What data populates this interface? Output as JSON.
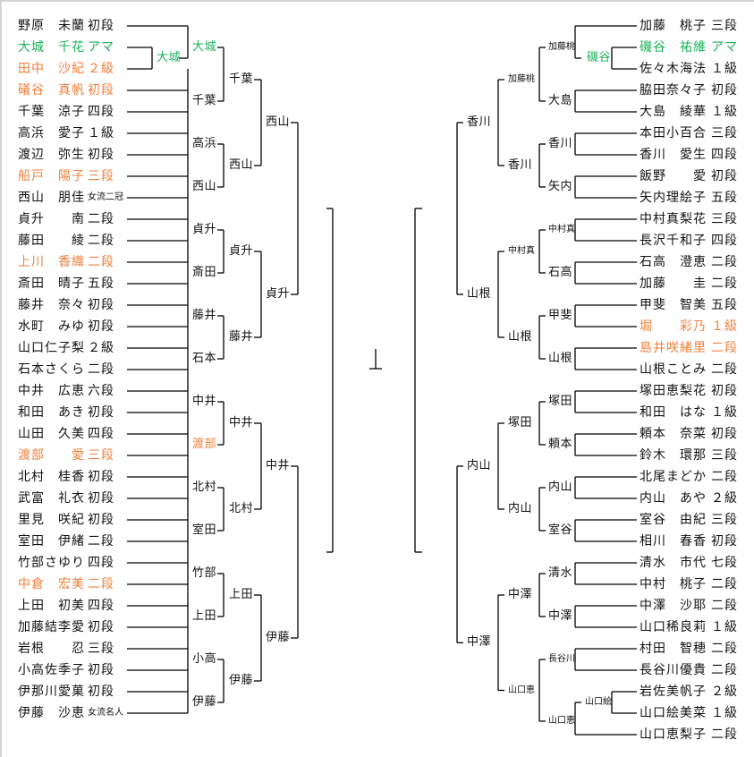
{
  "colors": {
    "default": "#111111",
    "green": "#19b25a",
    "orange": "#f0803c",
    "line": "#000000"
  },
  "left": {
    "players": [
      {
        "name": "野原　未蘭",
        "rank": "初段",
        "color": "#111111"
      },
      {
        "name": "大城　千花",
        "rank": "アマ",
        "color": "#19b25a"
      },
      {
        "name": "田中　沙紀",
        "rank": "２級",
        "color": "#f0803c"
      },
      {
        "name": "礒谷　真帆",
        "rank": "初段",
        "color": "#f0803c"
      },
      {
        "name": "千葉　涼子",
        "rank": "四段",
        "color": "#111111"
      },
      {
        "name": "高浜　愛子",
        "rank": "１級",
        "color": "#111111"
      },
      {
        "name": "渡辺　弥生",
        "rank": "初段",
        "color": "#111111"
      },
      {
        "name": "船戸　陽子",
        "rank": "三段",
        "color": "#f0803c"
      },
      {
        "name": "西山　朋佳",
        "rank": "女流二冠",
        "color": "#111111"
      },
      {
        "name": "貞升　　南",
        "rank": "二段",
        "color": "#111111"
      },
      {
        "name": "藤田　　綾",
        "rank": "二段",
        "color": "#111111"
      },
      {
        "name": "上川　香織",
        "rank": "二段",
        "color": "#f0803c"
      },
      {
        "name": "斎田　晴子",
        "rank": "五段",
        "color": "#111111"
      },
      {
        "name": "藤井　奈々",
        "rank": "初段",
        "color": "#111111"
      },
      {
        "name": "水町　みゆ",
        "rank": "初段",
        "color": "#111111"
      },
      {
        "name": "山口仁子梨",
        "rank": "２級",
        "color": "#111111"
      },
      {
        "name": "石本さくら",
        "rank": "二段",
        "color": "#111111"
      },
      {
        "name": "中井　広恵",
        "rank": "六段",
        "color": "#111111"
      },
      {
        "name": "和田　あき",
        "rank": "初段",
        "color": "#111111"
      },
      {
        "name": "山田　久美",
        "rank": "四段",
        "color": "#111111"
      },
      {
        "name": "渡部　　愛",
        "rank": "三段",
        "color": "#f0803c"
      },
      {
        "name": "北村　桂香",
        "rank": "初段",
        "color": "#111111"
      },
      {
        "name": "武富　礼衣",
        "rank": "初段",
        "color": "#111111"
      },
      {
        "name": "里見　咲紀",
        "rank": "初段",
        "color": "#111111"
      },
      {
        "name": "室田　伊緒",
        "rank": "二段",
        "color": "#111111"
      },
      {
        "name": "竹部さゆり",
        "rank": "四段",
        "color": "#111111"
      },
      {
        "name": "中倉　宏美",
        "rank": "二段",
        "color": "#f0803c"
      },
      {
        "name": "上田　初美",
        "rank": "四段",
        "color": "#111111"
      },
      {
        "name": "加藤結李愛",
        "rank": "初段",
        "color": "#111111"
      },
      {
        "name": "岩根　　忍",
        "rank": "三段",
        "color": "#111111"
      },
      {
        "name": "小高佐季子",
        "rank": "初段",
        "color": "#111111"
      },
      {
        "name": "伊那川愛菓",
        "rank": "初段",
        "color": "#111111"
      },
      {
        "name": "伊藤　沙恵",
        "rank": "女流名人",
        "color": "#111111"
      }
    ],
    "sub": [
      {
        "text": "大城",
        "color": "#19b25a"
      }
    ],
    "r1": [
      {
        "text": "大城",
        "color": "#19b25a"
      },
      {
        "text": "千葉"
      },
      {
        "text": "高浜"
      },
      {
        "text": "西山"
      },
      {
        "text": "貞升"
      },
      {
        "text": "斎田"
      },
      {
        "text": "藤井"
      },
      {
        "text": "石本"
      },
      {
        "text": "中井"
      },
      {
        "text": "渡部",
        "color": "#f0803c"
      },
      {
        "text": "北村"
      },
      {
        "text": "室田"
      },
      {
        "text": "竹部"
      },
      {
        "text": "上田"
      },
      {
        "text": "小高"
      },
      {
        "text": "伊藤"
      }
    ],
    "r2": [
      {
        "text": "千葉"
      },
      {
        "text": "西山"
      },
      {
        "text": "貞升"
      },
      {
        "text": "藤井"
      },
      {
        "text": "中井"
      },
      {
        "text": "北村"
      },
      {
        "text": "上田"
      },
      {
        "text": "伊藤"
      }
    ],
    "r3": [
      {
        "text": "西山"
      },
      {
        "text": "貞升"
      },
      {
        "text": "中井"
      },
      {
        "text": "伊藤"
      }
    ]
  },
  "right": {
    "players": [
      {
        "name": "加藤　桃子",
        "rank": "三段",
        "color": "#111111"
      },
      {
        "name": "磯谷　祐維",
        "rank": "アマ",
        "color": "#19b25a"
      },
      {
        "name": "佐々木海法",
        "rank": "１級",
        "color": "#111111"
      },
      {
        "name": "脇田奈々子",
        "rank": "初段",
        "color": "#111111"
      },
      {
        "name": "大島　綾華",
        "rank": "１級",
        "color": "#111111"
      },
      {
        "name": "本田小百合",
        "rank": "三段",
        "color": "#111111"
      },
      {
        "name": "香川　愛生",
        "rank": "四段",
        "color": "#111111"
      },
      {
        "name": "飯野　　愛",
        "rank": "初段",
        "color": "#111111"
      },
      {
        "name": "矢内理絵子",
        "rank": "五段",
        "color": "#111111"
      },
      {
        "name": "中村真梨花",
        "rank": "三段",
        "color": "#111111"
      },
      {
        "name": "長沢千和子",
        "rank": "四段",
        "color": "#111111"
      },
      {
        "name": "石高　澄恵",
        "rank": "二段",
        "color": "#111111"
      },
      {
        "name": "加藤　　圭",
        "rank": "二段",
        "color": "#111111"
      },
      {
        "name": "甲斐　智美",
        "rank": "五段",
        "color": "#111111"
      },
      {
        "name": "堀　　彩乃",
        "rank": "１級",
        "color": "#f0803c"
      },
      {
        "name": "島井咲緒里",
        "rank": "二段",
        "color": "#f0803c"
      },
      {
        "name": "山根ことみ",
        "rank": "二段",
        "color": "#111111"
      },
      {
        "name": "塚田恵梨花",
        "rank": "初段",
        "color": "#111111"
      },
      {
        "name": "和田　はな",
        "rank": "１級",
        "color": "#111111"
      },
      {
        "name": "頼本　奈菜",
        "rank": "初段",
        "color": "#111111"
      },
      {
        "name": "鈴木　環那",
        "rank": "三段",
        "color": "#111111"
      },
      {
        "name": "北尾まどか",
        "rank": "二段",
        "color": "#111111"
      },
      {
        "name": "内山　あや",
        "rank": "２級",
        "color": "#111111"
      },
      {
        "name": "室谷　由紀",
        "rank": "三段",
        "color": "#111111"
      },
      {
        "name": "相川　春香",
        "rank": "初段",
        "color": "#111111"
      },
      {
        "name": "清水　市代",
        "rank": "七段",
        "color": "#111111"
      },
      {
        "name": "中村　桃子",
        "rank": "二段",
        "color": "#111111"
      },
      {
        "name": "中澤　沙耶",
        "rank": "二段",
        "color": "#111111"
      },
      {
        "name": "山口稀良莉",
        "rank": "１級",
        "color": "#111111"
      },
      {
        "name": "村田　智穂",
        "rank": "二段",
        "color": "#111111"
      },
      {
        "name": "長谷川優貴",
        "rank": "二段",
        "color": "#111111"
      },
      {
        "name": "岩佐美帆子",
        "rank": "２級",
        "color": "#111111"
      },
      {
        "name": "山口絵美菜",
        "rank": "１級",
        "color": "#111111"
      },
      {
        "name": "山口恵梨子",
        "rank": "二段",
        "color": "#111111"
      }
    ],
    "sub": [
      {
        "text": "磯谷",
        "color": "#19b25a"
      },
      {
        "text": "山口絵"
      }
    ],
    "r1": [
      {
        "text": "加藤桃"
      },
      {
        "text": "大島"
      },
      {
        "text": "香川"
      },
      {
        "text": "矢内"
      },
      {
        "text": "中村真"
      },
      {
        "text": "石高"
      },
      {
        "text": "甲斐"
      },
      {
        "text": "山根"
      },
      {
        "text": "塚田"
      },
      {
        "text": "頼本"
      },
      {
        "text": "内山"
      },
      {
        "text": "室谷"
      },
      {
        "text": "清水"
      },
      {
        "text": "中澤"
      },
      {
        "text": "長谷川"
      },
      {
        "text": "山口恵"
      }
    ],
    "r2": [
      {
        "text": "加藤桃"
      },
      {
        "text": "香川"
      },
      {
        "text": "中村真"
      },
      {
        "text": "山根"
      },
      {
        "text": "塚田"
      },
      {
        "text": "内山"
      },
      {
        "text": "中澤"
      },
      {
        "text": "山口恵"
      }
    ],
    "r3": [
      {
        "text": "香川"
      },
      {
        "text": "山根"
      },
      {
        "text": "内山"
      },
      {
        "text": "中澤"
      }
    ]
  }
}
